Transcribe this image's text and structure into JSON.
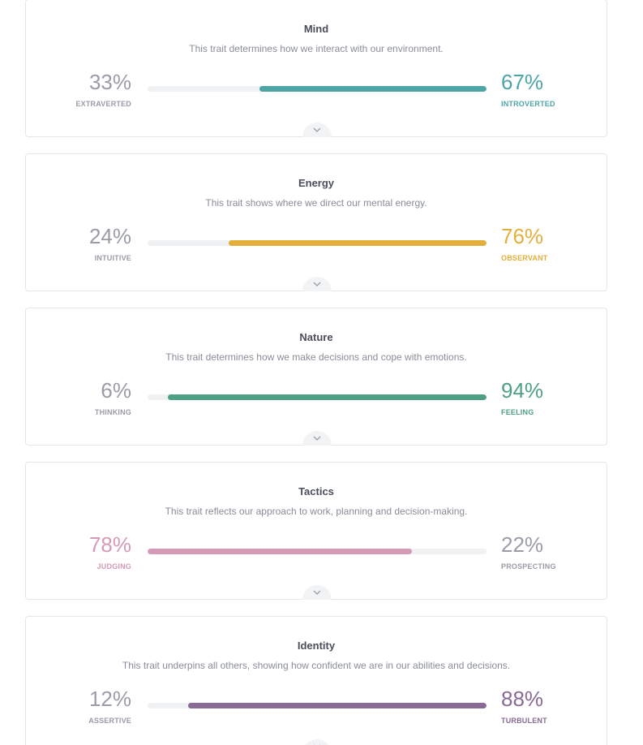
{
  "traits": [
    {
      "title": "Mind",
      "description": "This trait determines how we interact with our environment.",
      "left": {
        "percent_text": "33%",
        "label": "EXTRAVERTED"
      },
      "right": {
        "percent_text": "67%",
        "label": "INTROVERTED"
      },
      "dominant": "right",
      "dominant_fraction": 0.67,
      "color": "#4ea5a6"
    },
    {
      "title": "Energy",
      "description": "This trait shows where we direct our mental energy.",
      "left": {
        "percent_text": "24%",
        "label": "INTUITIVE"
      },
      "right": {
        "percent_text": "76%",
        "label": "OBSERVANT"
      },
      "dominant": "right",
      "dominant_fraction": 0.76,
      "color": "#e4ae3a"
    },
    {
      "title": "Nature",
      "description": "This trait determines how we make decisions and cope with emotions.",
      "left": {
        "percent_text": "6%",
        "label": "THINKING"
      },
      "right": {
        "percent_text": "94%",
        "label": "FEELING"
      },
      "dominant": "right",
      "dominant_fraction": 0.94,
      "color": "#4fa083"
    },
    {
      "title": "Tactics",
      "description": "This trait reflects our approach to work, planning and decision-making.",
      "left": {
        "percent_text": "78%",
        "label": "JUDGING"
      },
      "right": {
        "percent_text": "22%",
        "label": "PROSPECTING"
      },
      "dominant": "left",
      "dominant_fraction": 0.78,
      "color": "#d59ab5"
    },
    {
      "title": "Identity",
      "description": "This trait underpins all others, showing how confident we are in our abilities and decisions.",
      "left": {
        "percent_text": "12%",
        "label": "ASSERTIVE"
      },
      "right": {
        "percent_text": "88%",
        "label": "TURBULENT"
      },
      "dominant": "right",
      "dominant_fraction": 0.88,
      "color": "#886a95"
    }
  ],
  "neutral_color": "#9a9ca6",
  "expand_icon": "chevron-down-icon"
}
